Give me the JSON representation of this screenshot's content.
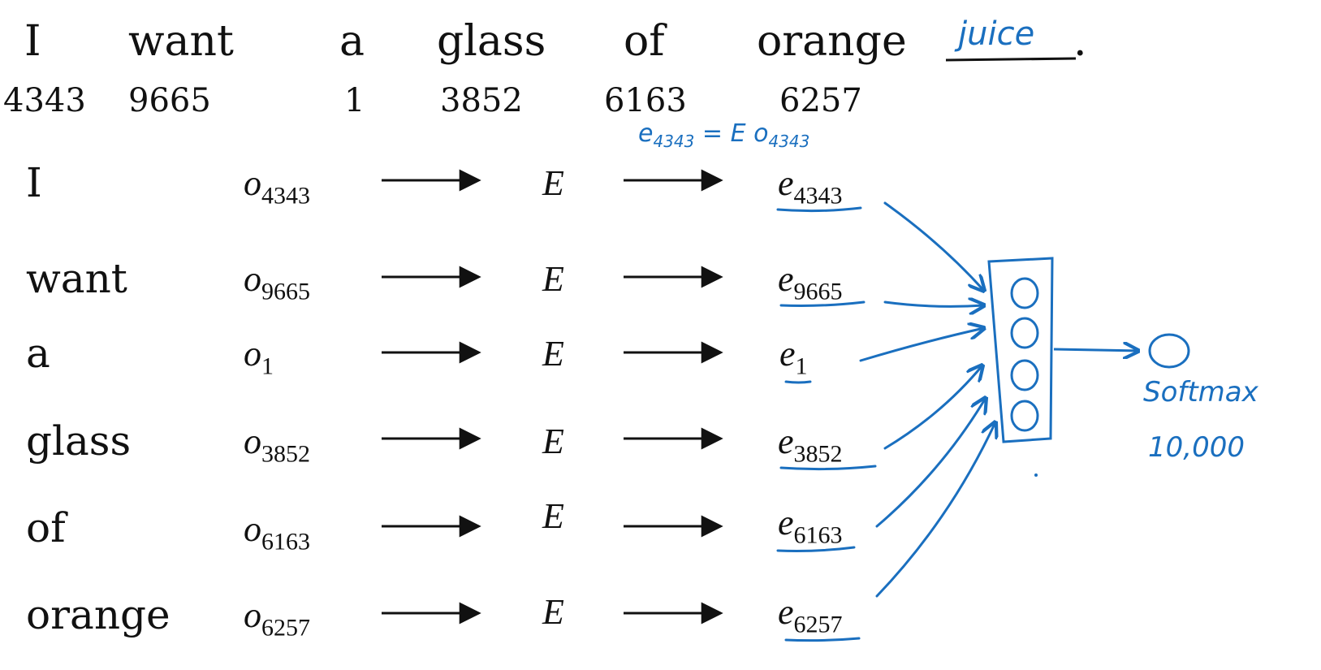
{
  "sentence": {
    "words": [
      "I",
      "want",
      "a",
      "glass",
      "of",
      "orange"
    ],
    "target": "juice",
    "period": ".",
    "indices": [
      "4343",
      "9665",
      "1",
      "3852",
      "6163",
      "6257"
    ]
  },
  "annotation": {
    "lhs": "e",
    "lhs_sub": "4343",
    "eq": "=",
    "rhs": "E",
    "rhs_o": "o",
    "rhs_sub": "4343"
  },
  "rows": [
    {
      "word": "I",
      "onehot": "o",
      "onehot_sub": "4343",
      "matrix": "E",
      "embed": "e",
      "embed_sub": "4343"
    },
    {
      "word": "want",
      "onehot": "o",
      "onehot_sub": "9665",
      "matrix": "E",
      "embed": "e",
      "embed_sub": "9665"
    },
    {
      "word": "a",
      "onehot": "o",
      "onehot_sub": "1",
      "matrix": "E",
      "embed": "e",
      "embed_sub": "1"
    },
    {
      "word": "glass",
      "onehot": "o",
      "onehot_sub": "3852",
      "matrix": "E",
      "embed": "e",
      "embed_sub": "3852"
    },
    {
      "word": "of",
      "onehot": "o",
      "onehot_sub": "6163",
      "matrix": "E",
      "embed": "e",
      "embed_sub": "6163"
    },
    {
      "word": "orange",
      "onehot": "o",
      "onehot_sub": "6257",
      "matrix": "E",
      "embed": "e",
      "embed_sub": "6257"
    }
  ],
  "output": {
    "label": "Softmax",
    "size": "10,000"
  },
  "colors": {
    "ink": "#111111",
    "handwriting": "#1a6fbf"
  }
}
